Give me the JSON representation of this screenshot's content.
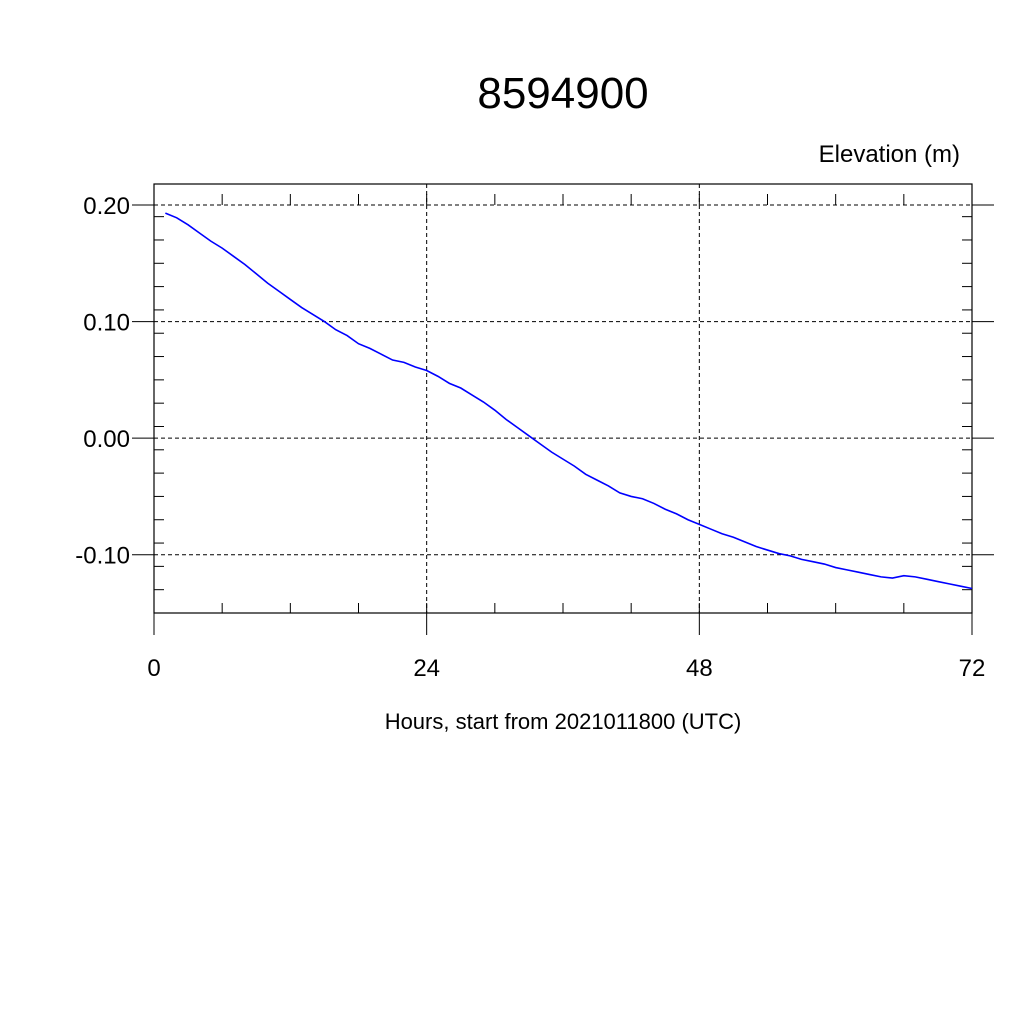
{
  "chart_data": {
    "type": "line",
    "title": "8594900",
    "ylabel": "Elevation (m)",
    "xlabel": "Hours, start from 2021011800 (UTC)",
    "xlim": [
      0,
      72
    ],
    "ylim": [
      -0.15,
      0.2
    ],
    "xticks": [
      0,
      24,
      48,
      72
    ],
    "xtick_labels": [
      "0",
      "24",
      "48",
      "72"
    ],
    "yticks": [
      0.2,
      0.1,
      0.0,
      -0.1
    ],
    "ytick_labels": [
      "0.20",
      "0.10",
      "0.00",
      "-0.10"
    ],
    "grid": true,
    "series": [
      {
        "color": "#0000ff",
        "x": [
          1,
          2,
          3,
          4,
          5,
          6,
          7,
          8,
          9,
          10,
          11,
          12,
          13,
          14,
          15,
          16,
          17,
          18,
          19,
          20,
          21,
          22,
          23,
          24,
          25,
          26,
          27,
          28,
          29,
          30,
          31,
          32,
          33,
          34,
          35,
          36,
          37,
          38,
          39,
          40,
          41,
          42,
          43,
          44,
          45,
          46,
          47,
          48,
          49,
          50,
          51,
          52,
          53,
          54,
          55,
          56,
          57,
          58,
          59,
          60,
          61,
          62,
          63,
          64,
          65,
          66,
          67,
          68,
          69,
          70,
          71,
          72
        ],
        "y": [
          0.193,
          0.189,
          0.183,
          0.176,
          0.169,
          0.163,
          0.156,
          0.149,
          0.141,
          0.133,
          0.126,
          0.119,
          0.112,
          0.106,
          0.1,
          0.093,
          0.088,
          0.081,
          0.077,
          0.072,
          0.067,
          0.065,
          0.061,
          0.058,
          0.053,
          0.047,
          0.043,
          0.037,
          0.031,
          0.024,
          0.016,
          0.009,
          0.002,
          -0.005,
          -0.012,
          -0.018,
          -0.024,
          -0.031,
          -0.036,
          -0.041,
          -0.047,
          -0.05,
          -0.052,
          -0.056,
          -0.061,
          -0.065,
          -0.07,
          -0.074,
          -0.078,
          -0.082,
          -0.085,
          -0.089,
          -0.093,
          -0.096,
          -0.099,
          -0.101,
          -0.104,
          -0.106,
          -0.108,
          -0.111,
          -0.113,
          -0.115,
          -0.117,
          -0.119,
          -0.12,
          -0.118,
          -0.119,
          -0.121,
          -0.123,
          -0.125,
          -0.127,
          -0.129
        ]
      }
    ]
  }
}
